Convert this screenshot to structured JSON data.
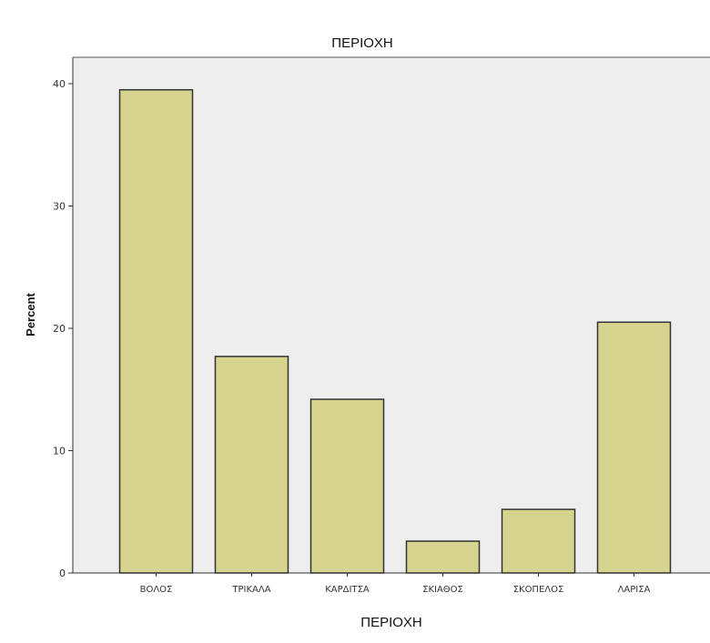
{
  "chart_data": {
    "type": "bar",
    "title": "ΠΕΡΙΟΧΗ",
    "xlabel": "ΠΕΡΙΟΧΗ",
    "ylabel": "Percent",
    "categories": [
      "ΒΟΛΟΣ",
      "ΤΡΙΚΑΛΑ",
      "ΚΑΡΔΙΤΣΑ",
      "ΣΚΙΑΘΟΣ",
      "ΣΚΟΠΕΛΟΣ",
      "ΛΑΡΙΣΑ"
    ],
    "values": [
      39.5,
      17.7,
      14.2,
      2.6,
      5.2,
      20.5
    ],
    "ylim": [
      0,
      42
    ],
    "yticks": [
      0,
      10,
      20,
      30,
      40
    ],
    "grid": false,
    "legend": "none",
    "colors": {
      "bar_fill": "#d6d48f",
      "bar_stroke": "#333333",
      "plot_background": "#eeeeee",
      "axis": "#333333"
    }
  }
}
